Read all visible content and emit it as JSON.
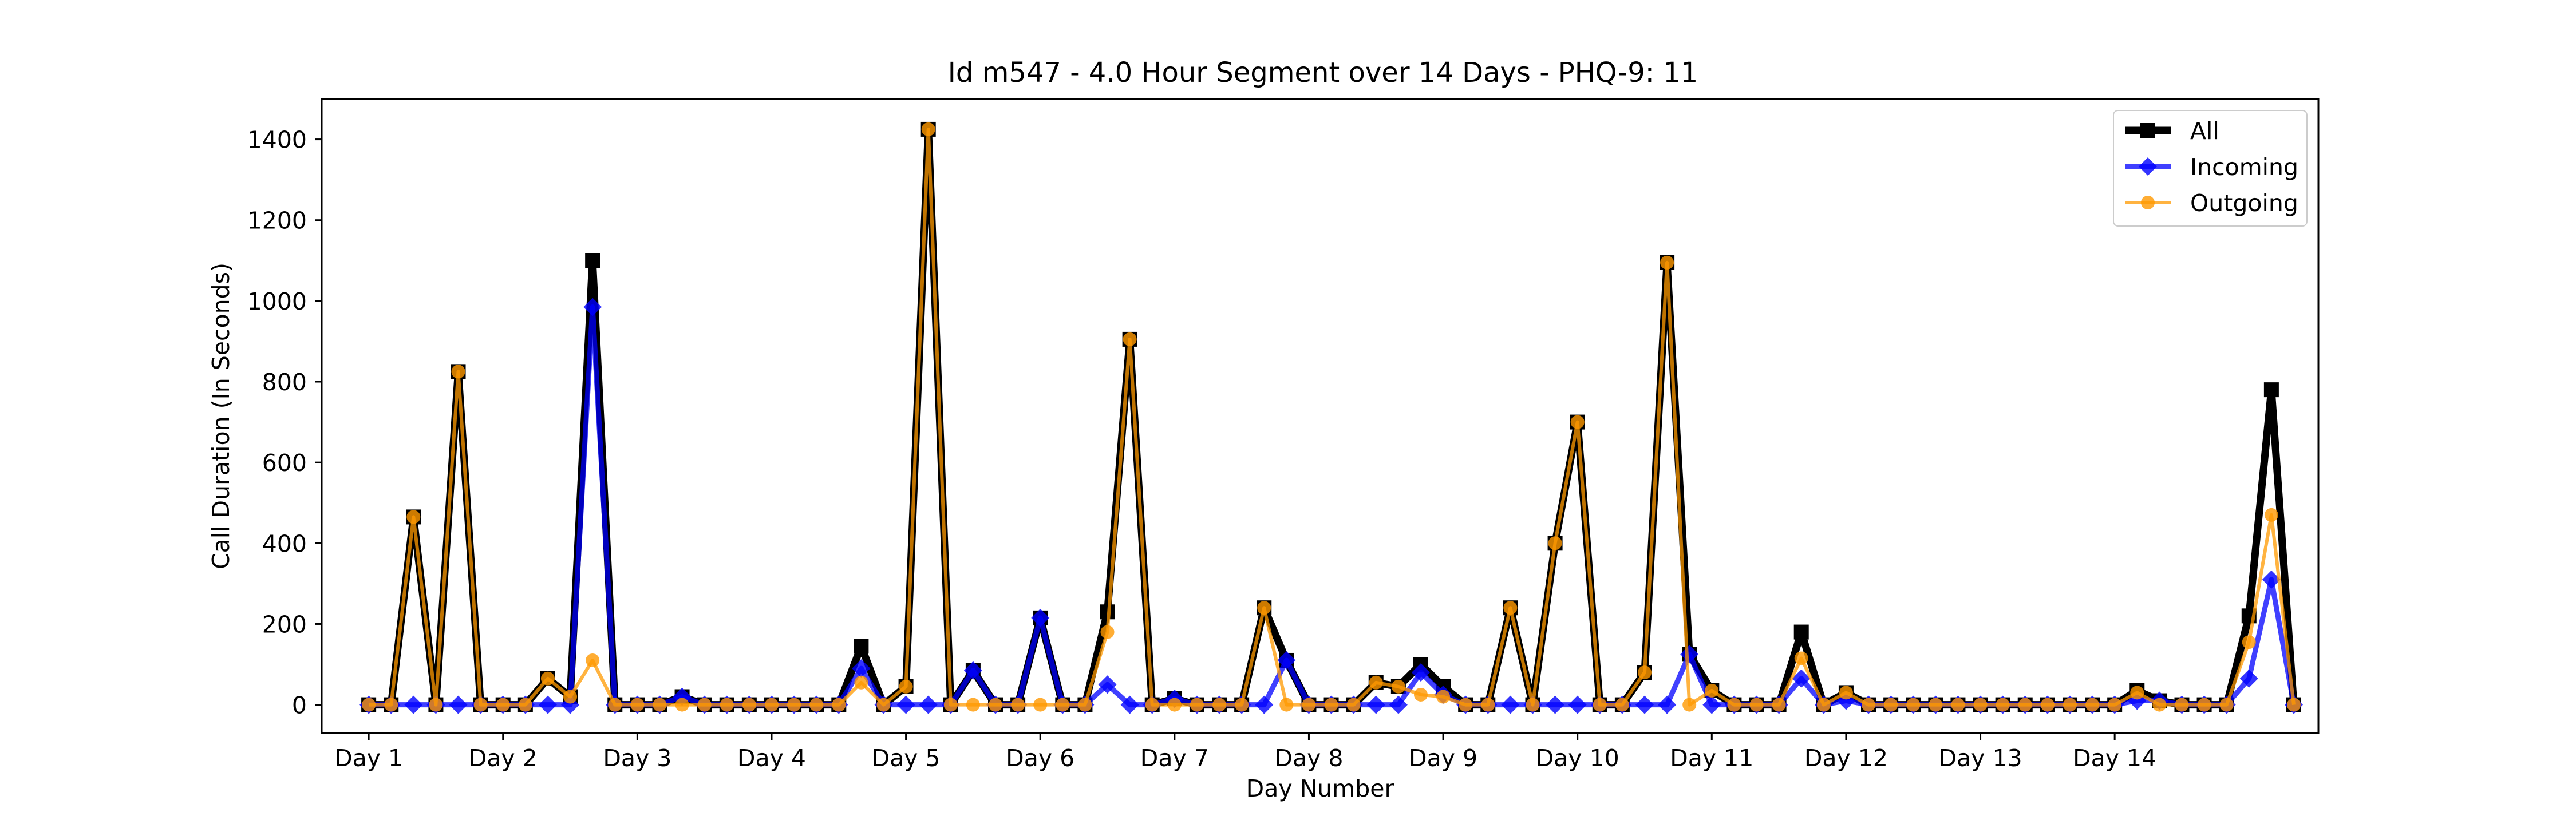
{
  "chart_data": {
    "type": "line",
    "title": "Id m547 - 4.0 Hour Segment over 14 Days - PHQ-9: 11",
    "xlabel": "Day Number",
    "ylabel": "Call Duration (In Seconds)",
    "ylim": [
      -70,
      1500
    ],
    "xlim": [
      -2.1,
      87.1
    ],
    "grid": false,
    "legend_position": "top-right",
    "x_ticks": [
      {
        "x": 0,
        "label": "Day 1"
      },
      {
        "x": 6,
        "label": "Day 2"
      },
      {
        "x": 12,
        "label": "Day 3"
      },
      {
        "x": 18,
        "label": "Day 4"
      },
      {
        "x": 24,
        "label": "Day 5"
      },
      {
        "x": 30,
        "label": "Day 6"
      },
      {
        "x": 36,
        "label": "Day 7"
      },
      {
        "x": 42,
        "label": "Day 8"
      },
      {
        "x": 48,
        "label": "Day 9"
      },
      {
        "x": 54,
        "label": "Day 10"
      },
      {
        "x": 60,
        "label": "Day 11"
      },
      {
        "x": 66,
        "label": "Day 12"
      },
      {
        "x": 72,
        "label": "Day 13"
      },
      {
        "x": 78,
        "label": "Day 14"
      }
    ],
    "y_ticks": [
      0,
      200,
      400,
      600,
      800,
      1000,
      1200,
      1400
    ],
    "series": [
      {
        "name": "All",
        "color": "#000000",
        "marker": "square",
        "values": [
          0,
          0,
          465,
          0,
          825,
          0,
          0,
          0,
          65,
          20,
          1100,
          0,
          0,
          0,
          20,
          0,
          0,
          0,
          0,
          0,
          0,
          0,
          145,
          0,
          45,
          1425,
          0,
          85,
          0,
          0,
          215,
          0,
          0,
          230,
          905,
          0,
          15,
          0,
          0,
          0,
          240,
          110,
          0,
          0,
          0,
          55,
          45,
          100,
          45,
          0,
          0,
          240,
          0,
          400,
          700,
          0,
          0,
          80,
          1095,
          125,
          35,
          0,
          0,
          0,
          180,
          0,
          30,
          0,
          0,
          0,
          0,
          0,
          0,
          0,
          0,
          0,
          0,
          0,
          0,
          35,
          10,
          0,
          0,
          0,
          220,
          780,
          0
        ]
      },
      {
        "name": "Incoming",
        "color": "#0000ff",
        "marker": "diamond",
        "values": [
          0,
          0,
          0,
          0,
          0,
          0,
          0,
          0,
          0,
          0,
          985,
          0,
          0,
          0,
          20,
          0,
          0,
          0,
          0,
          0,
          0,
          0,
          90,
          0,
          0,
          0,
          0,
          85,
          0,
          0,
          215,
          0,
          0,
          50,
          0,
          0,
          15,
          0,
          0,
          0,
          0,
          110,
          0,
          0,
          0,
          0,
          0,
          80,
          25,
          0,
          0,
          0,
          0,
          0,
          0,
          0,
          0,
          0,
          0,
          125,
          0,
          0,
          0,
          0,
          65,
          0,
          10,
          0,
          0,
          0,
          0,
          0,
          0,
          0,
          0,
          0,
          0,
          0,
          0,
          10,
          10,
          0,
          0,
          0,
          65,
          310,
          0
        ]
      },
      {
        "name": "Outgoing",
        "color": "#ff9900",
        "marker": "circle",
        "values": [
          0,
          0,
          465,
          0,
          825,
          0,
          0,
          0,
          65,
          20,
          110,
          0,
          0,
          0,
          0,
          0,
          0,
          0,
          0,
          0,
          0,
          0,
          55,
          0,
          45,
          1425,
          0,
          0,
          0,
          0,
          0,
          0,
          0,
          180,
          905,
          0,
          0,
          0,
          0,
          0,
          240,
          0,
          0,
          0,
          0,
          55,
          45,
          25,
          20,
          0,
          0,
          240,
          0,
          400,
          700,
          0,
          0,
          80,
          1095,
          0,
          35,
          0,
          0,
          0,
          115,
          0,
          30,
          0,
          0,
          0,
          0,
          0,
          0,
          0,
          0,
          0,
          0,
          0,
          0,
          30,
          0,
          0,
          0,
          0,
          155,
          470,
          0
        ]
      }
    ]
  }
}
